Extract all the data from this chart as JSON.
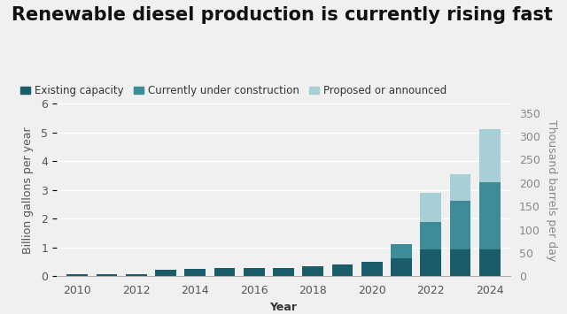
{
  "title": "Renewable diesel production is currently rising fast",
  "xlabel": "Year",
  "ylabel_left": "Billion gallons per year",
  "ylabel_right": "Thousand barrels per day",
  "years": [
    2010,
    2011,
    2012,
    2013,
    2014,
    2015,
    2016,
    2017,
    2018,
    2019,
    2020,
    2021,
    2022,
    2023,
    2024
  ],
  "existing": [
    0.06,
    0.07,
    0.07,
    0.22,
    0.25,
    0.28,
    0.28,
    0.28,
    0.35,
    0.4,
    0.5,
    0.62,
    0.93,
    0.93,
    0.93
  ],
  "construction": [
    0.0,
    0.0,
    0.0,
    0.0,
    0.0,
    0.0,
    0.0,
    0.0,
    0.0,
    0.0,
    0.0,
    0.5,
    0.97,
    1.68,
    2.35
  ],
  "proposed": [
    0.0,
    0.0,
    0.0,
    0.0,
    0.0,
    0.0,
    0.0,
    0.0,
    0.0,
    0.0,
    0.0,
    0.0,
    1.0,
    0.93,
    1.82
  ],
  "color_existing": "#1b5c6b",
  "color_construction": "#3d8c98",
  "color_proposed": "#a8cfd6",
  "ylim_left": [
    0,
    6
  ],
  "ylim_right": [
    0,
    370
  ],
  "right_ticks": [
    0,
    50,
    100,
    150,
    200,
    250,
    300,
    350
  ],
  "left_ticks": [
    0,
    1,
    2,
    3,
    4,
    5,
    6
  ],
  "background_color": "#f0f0f0",
  "plot_bg_color": "#f0f0f0",
  "grid_color": "#ffffff",
  "bar_width": 0.72,
  "legend_labels": [
    "Existing capacity",
    "Currently under construction",
    "Proposed or announced"
  ],
  "title_fontsize": 15,
  "label_fontsize": 9,
  "tick_fontsize": 9,
  "legend_fontsize": 8.5
}
